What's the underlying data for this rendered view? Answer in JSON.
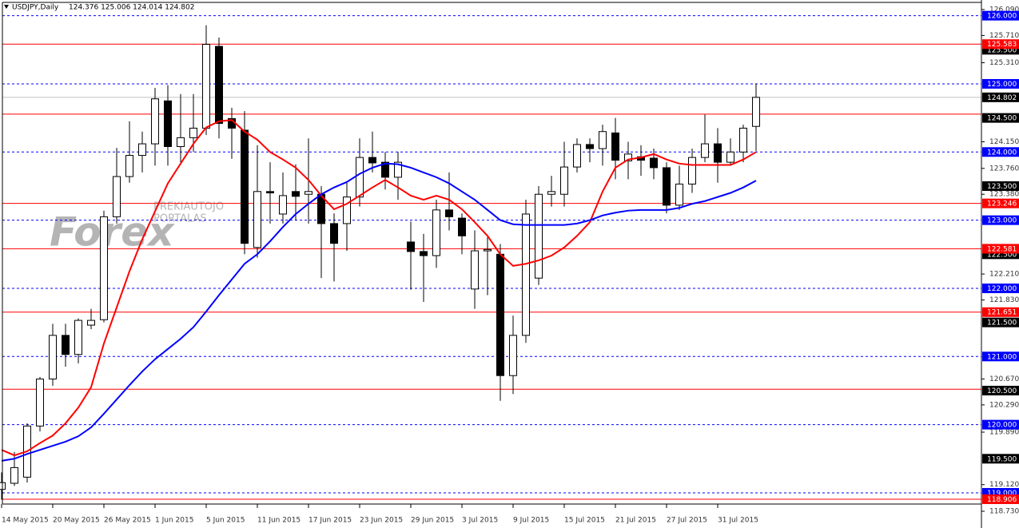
{
  "chart_data": {
    "type": "candlestick",
    "title": "USDJPY,Daily",
    "subtitle": "124.376 125.006 124.014 124.802",
    "watermark": {
      "brand": "Forex",
      "line1": "PREKIAUTOJO",
      "line2": "PORTALAS"
    },
    "categories": [
      "14 May 2015",
      null,
      null,
      null,
      "20 May 2015",
      null,
      null,
      null,
      "26 May 2015",
      null,
      null,
      null,
      "1 Jun 2015",
      null,
      null,
      null,
      "5 Jun 2015",
      null,
      null,
      null,
      "11 Jun 2015",
      null,
      null,
      null,
      "17 Jun 2015",
      null,
      null,
      null,
      "23 Jun 2015",
      null,
      null,
      null,
      "29 Jun 2015",
      null,
      null,
      null,
      "3 Jul 2015",
      null,
      null,
      null,
      "9 Jul 2015",
      null,
      null,
      null,
      "15 Jul 2015",
      null,
      null,
      null,
      "21 Jul 2015",
      null,
      null,
      null,
      "27 Jul 2015",
      null,
      null,
      null,
      "31 Jul 2015",
      null,
      null,
      null
    ],
    "open": [
      119.05,
      119.14,
      119.23,
      119.98,
      120.67,
      121.31,
      121.03,
      121.46,
      121.54,
      123.05,
      123.64,
      123.95,
      124.12,
      124.75,
      124.08,
      124.21,
      124.35,
      125.55,
      124.49,
      124.32,
      122.6,
      123.42,
      123.09,
      123.42,
      123.38,
      123.38,
      122.95,
      122.95,
      123.34,
      123.92,
      123.85,
      123.63,
      122.68,
      122.54,
      122.48,
      123.15,
      123.03,
      121.99,
      122.55,
      122.5,
      120.72,
      121.31,
      122.15,
      123.38,
      123.38,
      123.78,
      124.11,
      124.05,
      124.28,
      123.87,
      123.93,
      123.91,
      123.77,
      123.22,
      123.53,
      123.92,
      124.12,
      123.85,
      124.0,
      124.376
    ],
    "high": [
      119.3,
      119.6,
      120.02,
      120.7,
      121.48,
      121.48,
      121.56,
      121.7,
      123.14,
      124.06,
      124.45,
      124.3,
      124.94,
      124.98,
      124.85,
      124.85,
      125.86,
      125.68,
      124.65,
      124.6,
      124.1,
      123.85,
      123.7,
      123.82,
      124.2,
      123.5,
      123.1,
      123.55,
      124.2,
      124.3,
      124.0,
      124.0,
      122.98,
      122.8,
      123.3,
      123.7,
      123.1,
      122.85,
      122.75,
      122.65,
      121.6,
      123.3,
      123.5,
      123.65,
      124.15,
      124.2,
      124.2,
      124.4,
      124.5,
      124.15,
      124.1,
      124.05,
      123.85,
      123.8,
      124.05,
      124.55,
      124.35,
      124.2,
      124.4,
      125.006
    ],
    "low": [
      118.9,
      119.1,
      119.15,
      119.9,
      120.57,
      120.85,
      120.9,
      121.4,
      121.5,
      122.95,
      123.55,
      123.7,
      123.8,
      123.8,
      123.85,
      124.0,
      124.25,
      124.2,
      123.9,
      122.5,
      122.45,
      122.95,
      122.95,
      123.0,
      122.95,
      122.15,
      122.1,
      122.55,
      123.2,
      123.7,
      123.45,
      123.3,
      121.98,
      121.8,
      122.3,
      122.85,
      122.5,
      121.7,
      121.9,
      120.35,
      120.45,
      121.2,
      122.05,
      123.2,
      123.2,
      123.7,
      123.85,
      123.8,
      123.6,
      123.6,
      123.65,
      123.6,
      123.1,
      123.15,
      123.4,
      123.85,
      123.55,
      123.8,
      123.85,
      124.014
    ],
    "close": [
      119.15,
      119.37,
      119.98,
      120.67,
      121.31,
      121.03,
      121.53,
      121.53,
      123.05,
      123.64,
      123.95,
      124.12,
      124.78,
      124.08,
      124.21,
      124.35,
      125.58,
      124.42,
      124.35,
      122.66,
      123.42,
      123.4,
      123.36,
      123.35,
      123.42,
      122.95,
      122.66,
      123.34,
      123.92,
      123.84,
      123.63,
      123.85,
      122.54,
      122.48,
      123.15,
      123.05,
      122.77,
      122.55,
      122.57,
      120.72,
      121.31,
      123.09,
      123.38,
      123.42,
      123.78,
      124.11,
      124.05,
      124.3,
      123.88,
      123.97,
      123.88,
      123.77,
      123.22,
      123.53,
      123.92,
      124.12,
      123.85,
      124.0,
      124.35,
      124.802
    ],
    "up_color": "#ffffff",
    "down_color": "#000000",
    "moving_averages": [
      {
        "color": "#ff0000",
        "values": [
          119.63,
          119.55,
          119.61,
          119.73,
          119.84,
          120.02,
          120.25,
          120.55,
          121.19,
          121.72,
          122.25,
          122.72,
          123.13,
          123.54,
          123.83,
          124.12,
          124.36,
          124.45,
          124.47,
          124.3,
          124.18,
          124.0,
          123.89,
          123.77,
          123.59,
          123.36,
          123.16,
          123.24,
          123.36,
          123.48,
          123.59,
          123.48,
          123.36,
          123.3,
          123.36,
          123.3,
          123.16,
          122.97,
          122.77,
          122.5,
          122.33,
          122.36,
          122.41,
          122.48,
          122.6,
          122.77,
          122.97,
          123.42,
          123.77,
          123.89,
          123.92,
          123.97,
          123.89,
          123.83,
          123.81,
          123.81,
          123.81,
          123.81,
          123.89,
          124.0
        ]
      },
      {
        "color": "#0000ff",
        "values": [
          119.47,
          119.5,
          119.57,
          119.63,
          119.69,
          119.75,
          119.83,
          119.96,
          120.16,
          120.37,
          120.58,
          120.78,
          120.96,
          121.11,
          121.26,
          121.43,
          121.66,
          121.9,
          122.13,
          122.36,
          122.5,
          122.69,
          122.9,
          123.09,
          123.24,
          123.38,
          123.48,
          123.56,
          123.68,
          123.77,
          123.83,
          123.82,
          123.77,
          123.7,
          123.63,
          123.54,
          123.42,
          123.3,
          123.15,
          123.0,
          122.94,
          122.93,
          122.93,
          122.93,
          122.93,
          122.95,
          123.0,
          123.07,
          123.11,
          123.14,
          123.15,
          123.15,
          123.15,
          123.18,
          123.24,
          123.28,
          123.34,
          123.4,
          123.48,
          123.58
        ]
      }
    ],
    "ylim": [
      118.73,
      126.195
    ],
    "yticks": [
      {
        "value": 126.09,
        "label": "126.090"
      },
      {
        "value": 125.71,
        "label": "125.710"
      },
      {
        "value": 125.31,
        "label": "125.310"
      },
      {
        "value": 124.15,
        "label": "124.150"
      },
      {
        "value": 123.76,
        "label": "123.760"
      },
      {
        "value": 123.38,
        "label": "123.380"
      },
      {
        "value": 122.21,
        "label": "122.210"
      },
      {
        "value": 121.83,
        "label": "121.830"
      },
      {
        "value": 120.67,
        "label": "120.670"
      },
      {
        "value": 120.29,
        "label": "120.290"
      },
      {
        "value": 119.89,
        "label": "119.890"
      },
      {
        "value": 119.12,
        "label": "119.120"
      },
      {
        "value": 118.73,
        "label": "118.730"
      }
    ],
    "sr_levels": {
      "color": "#ff0000",
      "levels": [
        {
          "value": 125.583,
          "label": "125.583"
        },
        124.556,
        {
          "value": 123.246,
          "label": "123.246"
        },
        {
          "value": 122.581,
          "label": "122.581"
        },
        {
          "value": 121.651,
          "label": "121.651"
        },
        120.52,
        {
          "value": 118.906,
          "label": "118.906"
        }
      ]
    },
    "price_labels": [
      {
        "value": 125.5,
        "label": "125.500"
      },
      {
        "value": 124.5,
        "label": "124.500"
      },
      {
        "value": 123.5,
        "label": "123.500"
      },
      {
        "value": 122.5,
        "label": "122.500"
      },
      {
        "value": 121.5,
        "label": "121.500"
      },
      {
        "value": 120.5,
        "label": "120.500"
      },
      {
        "value": 119.5,
        "label": "119.500"
      }
    ],
    "round_levels": {
      "color": "#0000ff",
      "levels": [
        {
          "value": 126,
          "label": "126.000"
        },
        {
          "value": 125,
          "label": "125.000"
        },
        {
          "value": 124,
          "label": "124.000"
        },
        {
          "value": 123,
          "label": "123.000"
        },
        {
          "value": 122,
          "label": "122.000"
        },
        {
          "value": 121,
          "label": "121.000"
        },
        {
          "value": 120,
          "label": "120.000"
        },
        {
          "value": 119,
          "label": "119.000"
        }
      ]
    },
    "current_price": {
      "value": 124.802,
      "label": "124.802"
    }
  }
}
